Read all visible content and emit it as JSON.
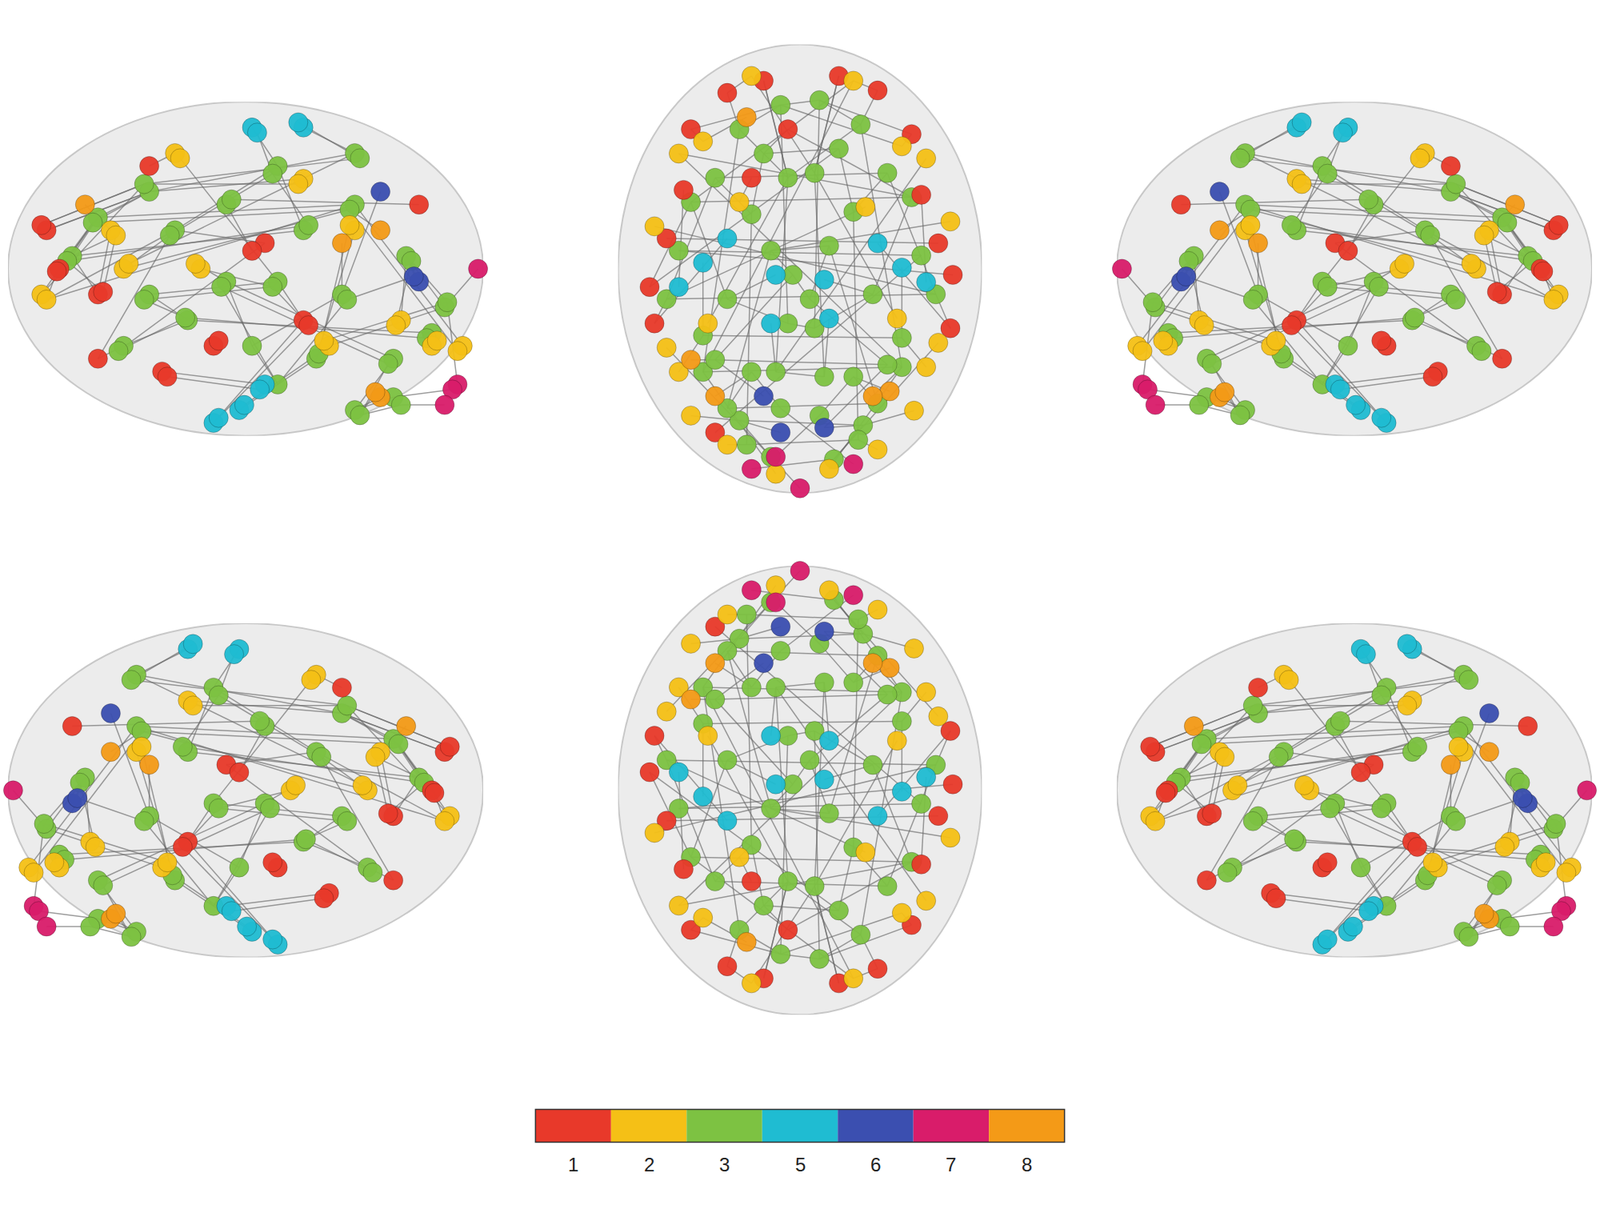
{
  "chart_data": {
    "type": "brain_network",
    "tick_labels": false,
    "xlim": [
      -75,
      75
    ],
    "ylim": [
      -110,
      75
    ],
    "zlim": [
      -50,
      80
    ],
    "modules": {
      "values": [
        1,
        2,
        3,
        5,
        6,
        7,
        8
      ],
      "colors": [
        "#e8392a",
        "#f5c016",
        "#7dc242",
        "#1fbcd2",
        "#3b4fb0",
        "#d91c6a",
        "#f49a17"
      ]
    },
    "nodes": [
      {
        "x": -8,
        "y": 50,
        "z": 20,
        "module": 3
      },
      {
        "x": 8,
        "y": 52,
        "z": 18,
        "module": 3
      },
      {
        "x": -25,
        "y": 40,
        "z": 35,
        "module": 3
      },
      {
        "x": 25,
        "y": 42,
        "z": 33,
        "module": 3
      },
      {
        "x": -5,
        "y": 20,
        "z": 45,
        "module": 3
      },
      {
        "x": 6,
        "y": 22,
        "z": 48,
        "module": 3
      },
      {
        "x": -35,
        "y": 20,
        "z": 5,
        "module": 3
      },
      {
        "x": 36,
        "y": 22,
        "z": 3,
        "module": 3
      },
      {
        "x": -45,
        "y": 10,
        "z": 30,
        "module": 3
      },
      {
        "x": 46,
        "y": 12,
        "z": 28,
        "module": 3
      },
      {
        "x": -12,
        "y": -10,
        "z": 10,
        "module": 3
      },
      {
        "x": 12,
        "y": -8,
        "z": 8,
        "module": 3
      },
      {
        "x": -20,
        "y": 5,
        "z": -5,
        "module": 3
      },
      {
        "x": 22,
        "y": 6,
        "z": -4,
        "module": 3
      },
      {
        "x": -5,
        "y": -40,
        "z": 30,
        "module": 3
      },
      {
        "x": 6,
        "y": -42,
        "z": 32,
        "module": 3
      },
      {
        "x": -30,
        "y": -30,
        "z": 55,
        "module": 3
      },
      {
        "x": 30,
        "y": -28,
        "z": 52,
        "module": 3
      },
      {
        "x": -40,
        "y": -60,
        "z": 40,
        "module": 3
      },
      {
        "x": 42,
        "y": -58,
        "z": 38,
        "module": 3
      },
      {
        "x": -10,
        "y": -60,
        "z": 60,
        "module": 3
      },
      {
        "x": 10,
        "y": -62,
        "z": 58,
        "module": 3
      },
      {
        "x": -25,
        "y": -80,
        "z": 20,
        "module": 3
      },
      {
        "x": 26,
        "y": -82,
        "z": 18,
        "module": 3
      },
      {
        "x": -12,
        "y": -95,
        "z": 0,
        "module": 3
      },
      {
        "x": 14,
        "y": -96,
        "z": 2,
        "module": 3
      },
      {
        "x": -30,
        "y": -75,
        "z": -20,
        "module": 3
      },
      {
        "x": 32,
        "y": -73,
        "z": -22,
        "module": 3
      },
      {
        "x": -20,
        "y": -60,
        "z": -40,
        "module": 3
      },
      {
        "x": 22,
        "y": -62,
        "z": -42,
        "module": 3
      },
      {
        "x": -8,
        "y": -75,
        "z": -35,
        "module": 3
      },
      {
        "x": 8,
        "y": -78,
        "z": -38,
        "module": 3
      },
      {
        "x": -40,
        "y": -45,
        "z": -20,
        "module": 3
      },
      {
        "x": 42,
        "y": -46,
        "z": -18,
        "module": 3
      },
      {
        "x": -55,
        "y": -30,
        "z": 10,
        "module": 3
      },
      {
        "x": 56,
        "y": -28,
        "z": 8,
        "module": 3
      },
      {
        "x": -3,
        "y": -20,
        "z": -15,
        "module": 3
      },
      {
        "x": 4,
        "y": -30,
        "z": -30,
        "module": 3
      },
      {
        "x": -15,
        "y": 30,
        "z": -15,
        "module": 3
      },
      {
        "x": 16,
        "y": 32,
        "z": -17,
        "module": 3
      },
      {
        "x": -50,
        "y": -10,
        "z": 40,
        "module": 3
      },
      {
        "x": 50,
        "y": -12,
        "z": 42,
        "module": 3
      },
      {
        "x": -22,
        "y": -90,
        "z": -10,
        "module": 3
      },
      {
        "x": 24,
        "y": -88,
        "z": -12,
        "module": 3
      },
      {
        "x": -35,
        "y": -55,
        "z": 5,
        "module": 3
      },
      {
        "x": 36,
        "y": -57,
        "z": 3,
        "module": 3
      },
      {
        "x": -45,
        "y": 40,
        "z": 5,
        "module": 1
      },
      {
        "x": 46,
        "y": 38,
        "z": 6,
        "module": 1
      },
      {
        "x": -30,
        "y": 55,
        "z": 15,
        "module": 1
      },
      {
        "x": 32,
        "y": 56,
        "z": 14,
        "module": 1
      },
      {
        "x": -15,
        "y": 60,
        "z": 30,
        "module": 1
      },
      {
        "x": 16,
        "y": 62,
        "z": 32,
        "module": 1
      },
      {
        "x": -55,
        "y": -5,
        "z": -15,
        "module": 1
      },
      {
        "x": 57,
        "y": -7,
        "z": -13,
        "module": 1
      },
      {
        "x": -60,
        "y": -40,
        "z": -5,
        "module": 1
      },
      {
        "x": 62,
        "y": -42,
        "z": -7,
        "module": 1
      },
      {
        "x": -48,
        "y": 15,
        "z": -25,
        "module": 1
      },
      {
        "x": 50,
        "y": 13,
        "z": -27,
        "module": 1
      },
      {
        "x": -5,
        "y": 40,
        "z": -20,
        "module": 1
      },
      {
        "x": -62,
        "y": -25,
        "z": 25,
        "module": 1
      },
      {
        "x": 63,
        "y": -20,
        "z": 22,
        "module": 1
      },
      {
        "x": -35,
        "y": -85,
        "z": 40,
        "module": 1
      },
      {
        "x": -20,
        "y": 20,
        "z": 55,
        "module": 1
      },
      {
        "x": -40,
        "y": 35,
        "z": 30,
        "module": 2
      },
      {
        "x": 42,
        "y": 33,
        "z": 28,
        "module": 2
      },
      {
        "x": -20,
        "y": 62,
        "z": 5,
        "module": 2
      },
      {
        "x": 22,
        "y": 60,
        "z": 3,
        "module": 2
      },
      {
        "x": -50,
        "y": 30,
        "z": 15,
        "module": 2
      },
      {
        "x": 52,
        "y": 28,
        "z": 17,
        "module": 2
      },
      {
        "x": -30,
        "y": -90,
        "z": -15,
        "module": 2
      },
      {
        "x": 32,
        "y": -92,
        "z": -13,
        "module": 2
      },
      {
        "x": -45,
        "y": -78,
        "z": -5,
        "module": 2
      },
      {
        "x": 47,
        "y": -76,
        "z": -7,
        "module": 2
      },
      {
        "x": -50,
        "y": -60,
        "z": 30,
        "module": 2
      },
      {
        "x": 52,
        "y": -58,
        "z": 32,
        "module": 2
      },
      {
        "x": -55,
        "y": -50,
        "z": -15,
        "module": 2
      },
      {
        "x": 57,
        "y": -48,
        "z": -13,
        "module": 2
      },
      {
        "x": -10,
        "y": -102,
        "z": -15,
        "module": 2
      },
      {
        "x": 12,
        "y": -100,
        "z": -17,
        "module": 2
      },
      {
        "x": -38,
        "y": -40,
        "z": 50,
        "module": 2
      },
      {
        "x": 40,
        "y": -38,
        "z": 48,
        "module": 2
      },
      {
        "x": -25,
        "y": 10,
        "z": 60,
        "module": 2
      },
      {
        "x": 27,
        "y": 8,
        "z": 58,
        "module": 2
      },
      {
        "x": -60,
        "y": 0,
        "z": 15,
        "module": 2
      },
      {
        "x": 62,
        "y": 2,
        "z": 17,
        "module": 2
      },
      {
        "x": -10,
        "y": -20,
        "z": 70,
        "module": 5
      },
      {
        "x": 10,
        "y": -22,
        "z": 68,
        "module": 5
      },
      {
        "x": -12,
        "y": -40,
        "z": 70,
        "module": 5
      },
      {
        "x": 12,
        "y": -38,
        "z": 72,
        "module": 5
      },
      {
        "x": -40,
        "y": -15,
        "z": -40,
        "module": 5
      },
      {
        "x": 42,
        "y": -17,
        "z": -38,
        "module": 5
      },
      {
        "x": -30,
        "y": -5,
        "z": -45,
        "module": 5
      },
      {
        "x": 32,
        "y": -7,
        "z": -43,
        "module": 5
      },
      {
        "x": -50,
        "y": -25,
        "z": -30,
        "module": 5
      },
      {
        "x": 52,
        "y": -23,
        "z": -32,
        "module": 5
      },
      {
        "x": -8,
        "y": -85,
        "z": 10,
        "module": 6
      },
      {
        "x": 10,
        "y": -83,
        "z": 12,
        "module": 6
      },
      {
        "x": -15,
        "y": -70,
        "z": 45,
        "module": 6
      },
      {
        "x": 0,
        "y": -108,
        "z": 15,
        "module": 7
      },
      {
        "x": -20,
        "y": -100,
        "z": -30,
        "module": 7
      },
      {
        "x": 22,
        "y": -98,
        "z": -32,
        "module": 7
      },
      {
        "x": -10,
        "y": -95,
        "z": -38,
        "module": 7
      },
      {
        "x": -22,
        "y": 45,
        "z": 40,
        "module": 8
      },
      {
        "x": -35,
        "y": -70,
        "z": -35,
        "module": 8
      },
      {
        "x": 37,
        "y": -68,
        "z": -33,
        "module": 8
      },
      {
        "x": 30,
        "y": -70,
        "z": 30,
        "module": 8
      },
      {
        "x": -45,
        "y": -55,
        "z": 25,
        "module": 8
      }
    ],
    "edges": [
      [
        0,
        1
      ],
      [
        0,
        2
      ],
      [
        1,
        3
      ],
      [
        2,
        4
      ],
      [
        3,
        4
      ],
      [
        0,
        46
      ],
      [
        1,
        47
      ],
      [
        2,
        48
      ],
      [
        3,
        49
      ],
      [
        4,
        50
      ],
      [
        5,
        51
      ],
      [
        6,
        7
      ],
      [
        6,
        12
      ],
      [
        7,
        13
      ],
      [
        8,
        9
      ],
      [
        8,
        16
      ],
      [
        9,
        17
      ],
      [
        10,
        11
      ],
      [
        10,
        36
      ],
      [
        11,
        37
      ],
      [
        12,
        38
      ],
      [
        13,
        39
      ],
      [
        14,
        15
      ],
      [
        14,
        16
      ],
      [
        15,
        17
      ],
      [
        16,
        85
      ],
      [
        17,
        86
      ],
      [
        18,
        19
      ],
      [
        18,
        66
      ],
      [
        19,
        67
      ],
      [
        20,
        21
      ],
      [
        20,
        87
      ],
      [
        21,
        88
      ],
      [
        22,
        23
      ],
      [
        22,
        24
      ],
      [
        23,
        25
      ],
      [
        24,
        98
      ],
      [
        25,
        99
      ],
      [
        26,
        27
      ],
      [
        26,
        28
      ],
      [
        27,
        29
      ],
      [
        28,
        30
      ],
      [
        29,
        31
      ],
      [
        30,
        100
      ],
      [
        31,
        101
      ],
      [
        32,
        33
      ],
      [
        32,
        89
      ],
      [
        33,
        90
      ],
      [
        34,
        35
      ],
      [
        34,
        54
      ],
      [
        35,
        55
      ],
      [
        36,
        37
      ],
      [
        38,
        39
      ],
      [
        38,
        58
      ],
      [
        39,
        59
      ],
      [
        40,
        41
      ],
      [
        40,
        60
      ],
      [
        41,
        61
      ],
      [
        42,
        43
      ],
      [
        42,
        69
      ],
      [
        43,
        70
      ],
      [
        44,
        45
      ],
      [
        44,
        97
      ],
      [
        45,
        96
      ],
      [
        46,
        63
      ],
      [
        47,
        64
      ],
      [
        48,
        65
      ],
      [
        49,
        66
      ],
      [
        52,
        53
      ],
      [
        54,
        91
      ],
      [
        55,
        92
      ],
      [
        56,
        93
      ],
      [
        57,
        94
      ],
      [
        62,
        81
      ],
      [
        63,
        102
      ],
      [
        64,
        0
      ],
      [
        65,
        5
      ],
      [
        66,
        8
      ],
      [
        67,
        9
      ],
      [
        68,
        20
      ],
      [
        71,
        22
      ],
      [
        72,
        23
      ],
      [
        73,
        32
      ],
      [
        74,
        33
      ],
      [
        75,
        24
      ],
      [
        76,
        25
      ],
      [
        77,
        18
      ],
      [
        78,
        19
      ],
      [
        79,
        4
      ],
      [
        80,
        5
      ],
      [
        82,
        34
      ],
      [
        83,
        35
      ],
      [
        84,
        10
      ],
      [
        95,
        22
      ],
      [
        96,
        23
      ],
      [
        103,
        28
      ],
      [
        104,
        29
      ],
      [
        105,
        19
      ],
      [
        106,
        44
      ],
      [
        0,
        14
      ],
      [
        1,
        15
      ],
      [
        2,
        18
      ],
      [
        3,
        19
      ],
      [
        6,
        34
      ],
      [
        7,
        35
      ],
      [
        12,
        42
      ],
      [
        13,
        43
      ],
      [
        4,
        20
      ],
      [
        5,
        21
      ],
      [
        10,
        26
      ],
      [
        11,
        27
      ],
      [
        36,
        44
      ],
      [
        37,
        45
      ],
      [
        59,
        8
      ],
      [
        58,
        9
      ],
      [
        50,
        4
      ],
      [
        51,
        5
      ]
    ]
  }
}
